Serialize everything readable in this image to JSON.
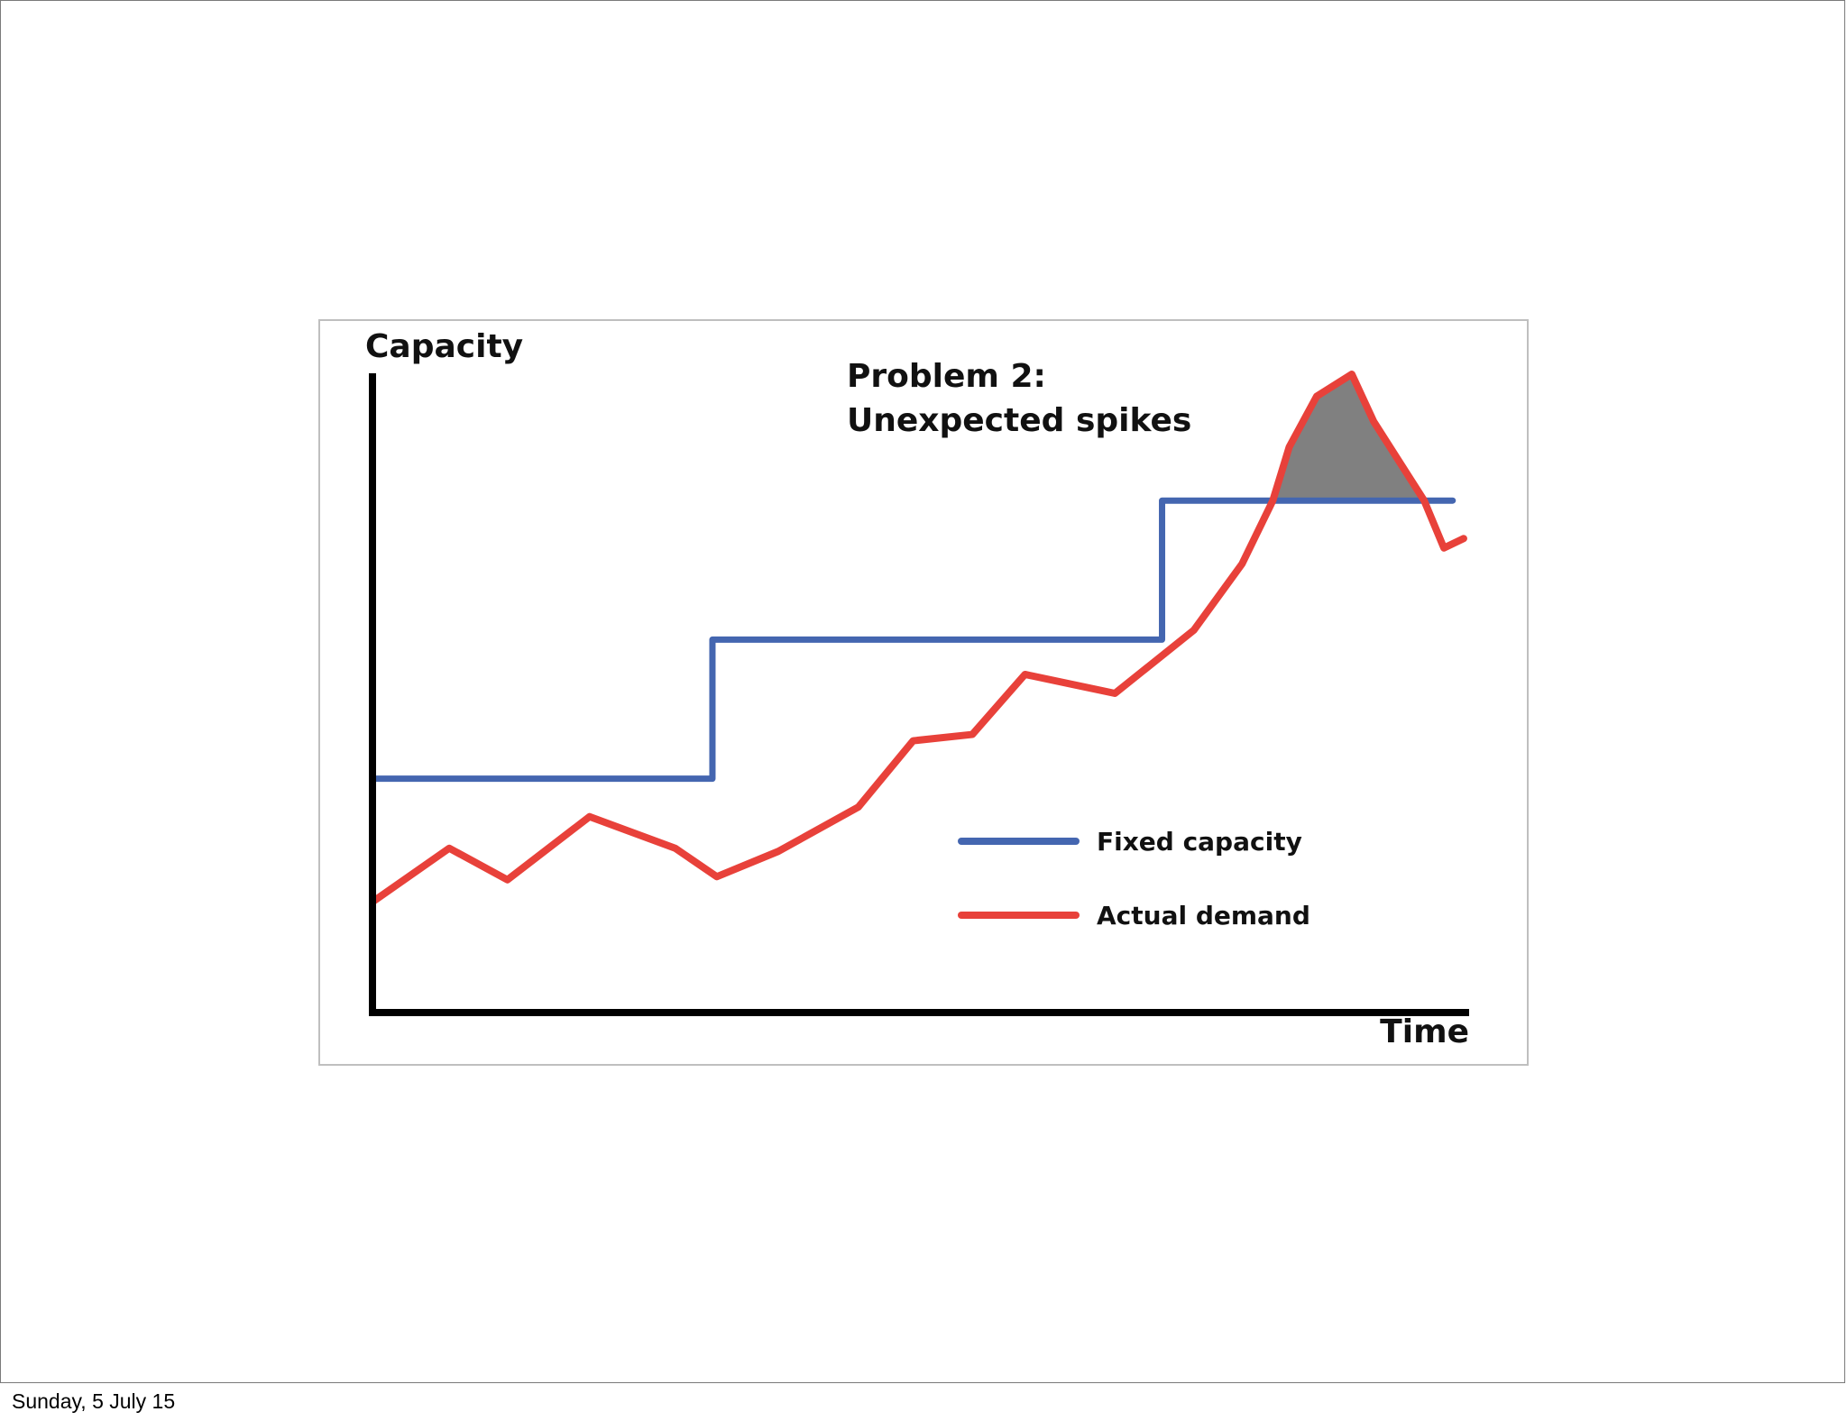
{
  "footer": {
    "date": "Sunday, 5 July 15"
  },
  "chart_data": {
    "type": "line",
    "title": "Problem 2:\nUnexpected spikes",
    "title_lines": [
      "Problem 2:",
      "Unexpected spikes"
    ],
    "xlabel": "Time",
    "ylabel": "Capacity",
    "xlim": [
      0,
      100
    ],
    "ylim": [
      0,
      100
    ],
    "grid": false,
    "legend_placement": "center-right",
    "series": [
      {
        "name": "Fixed capacity",
        "color": "#4466b0",
        "step": true,
        "x": [
          0,
          31,
          31,
          72,
          72,
          98.5
        ],
        "y": [
          37,
          37,
          59,
          59,
          81,
          81
        ]
      },
      {
        "name": "Actual demand",
        "color": "#e8413a",
        "x": [
          0,
          7,
          12.3,
          19.8,
          27.6,
          31.4,
          37,
          44.3,
          49.3,
          54.7,
          59.5,
          67.7,
          74.9,
          79.3,
          82.1,
          83.6,
          86.1,
          89.3,
          91.3,
          95.9,
          97.7,
          99.5
        ],
        "y": [
          17.5,
          26,
          21,
          31,
          26,
          21.5,
          25.5,
          32.5,
          43,
          44,
          53.5,
          50.5,
          60.5,
          71,
          81,
          89.5,
          97.5,
          101,
          93.5,
          81,
          73.5,
          75
        ]
      }
    ],
    "shaded_region": {
      "description_color": "#808080",
      "x": [
        82.1,
        83.6,
        86.1,
        89.3,
        91.3,
        95.9
      ],
      "y_upper": [
        81,
        89.5,
        97.5,
        101,
        93.5,
        81
      ],
      "y_lower": 81
    }
  }
}
